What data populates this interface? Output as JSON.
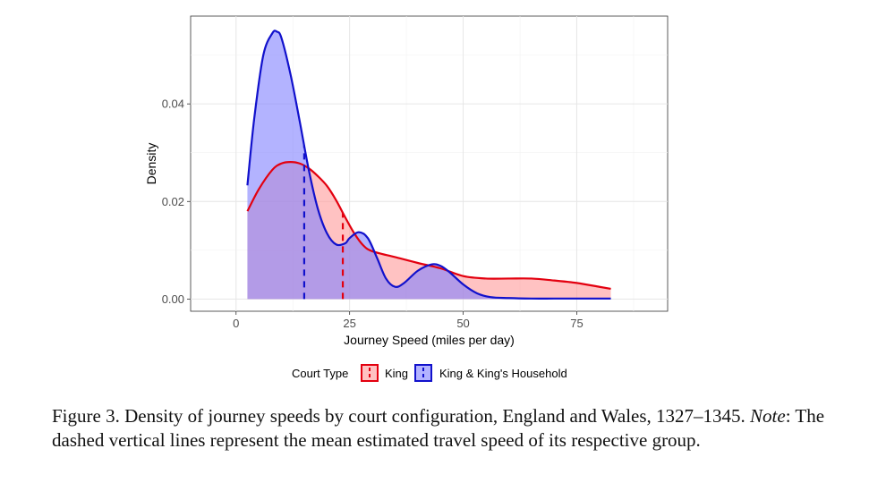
{
  "chart_data": {
    "type": "area",
    "xlabel": "Journey Speed (miles per day)",
    "ylabel": "Density",
    "xlim": [
      -10,
      95
    ],
    "ylim": [
      -0.0025,
      0.058
    ],
    "x_ticks": [
      0,
      25,
      50,
      75
    ],
    "x_tick_labels": [
      "0",
      "25",
      "50",
      "75"
    ],
    "y_ticks": [
      0,
      0.02,
      0.04
    ],
    "y_tick_labels": [
      "0.00",
      "0.02",
      "0.04"
    ],
    "grid": true,
    "legend": {
      "title": "Court Type",
      "position": "bottom"
    },
    "series": [
      {
        "name": "King",
        "color": "#e3000f",
        "fill": "#ff9999",
        "mean": 23.5,
        "x": [
          2.5,
          5,
          8,
          10,
          12,
          14,
          16,
          18,
          20,
          22,
          24,
          26,
          28,
          30,
          35,
          40,
          45,
          50,
          55,
          60,
          65,
          70,
          75,
          80,
          82.5
        ],
        "y": [
          0.018,
          0.0225,
          0.0265,
          0.0278,
          0.0281,
          0.0278,
          0.0268,
          0.0252,
          0.0232,
          0.0203,
          0.0168,
          0.0135,
          0.011,
          0.0098,
          0.0086,
          0.0074,
          0.0063,
          0.0047,
          0.0042,
          0.0042,
          0.0042,
          0.0038,
          0.0033,
          0.0025,
          0.0021
        ]
      },
      {
        "name": "King & King's Household",
        "color": "#1111cc",
        "fill": "#8080ff",
        "mean": 15,
        "x": [
          2.5,
          4,
          6,
          8,
          9,
          10,
          12,
          14,
          16,
          18,
          20,
          22,
          24,
          25,
          27,
          29,
          31,
          33,
          35,
          37,
          40,
          43,
          45,
          47,
          50,
          53,
          56,
          60,
          65,
          70,
          75,
          82.5
        ],
        "y": [
          0.0233,
          0.037,
          0.05,
          0.0545,
          0.0548,
          0.0535,
          0.046,
          0.0365,
          0.0265,
          0.0185,
          0.0135,
          0.0112,
          0.0114,
          0.0125,
          0.0137,
          0.0125,
          0.0085,
          0.0042,
          0.0025,
          0.0033,
          0.0058,
          0.0071,
          0.0068,
          0.0055,
          0.003,
          0.0012,
          0.0004,
          0.0002,
          0.0001,
          0.0001,
          0.0001,
          0.0001
        ]
      }
    ]
  },
  "caption": {
    "main": "Figure 3. Density of journey speeds by court configuration, England and Wales, 1327–1345.",
    "note_label": "Note",
    "note_text": ": The dashed vertical lines represent the mean estimated travel speed of its respective group."
  }
}
